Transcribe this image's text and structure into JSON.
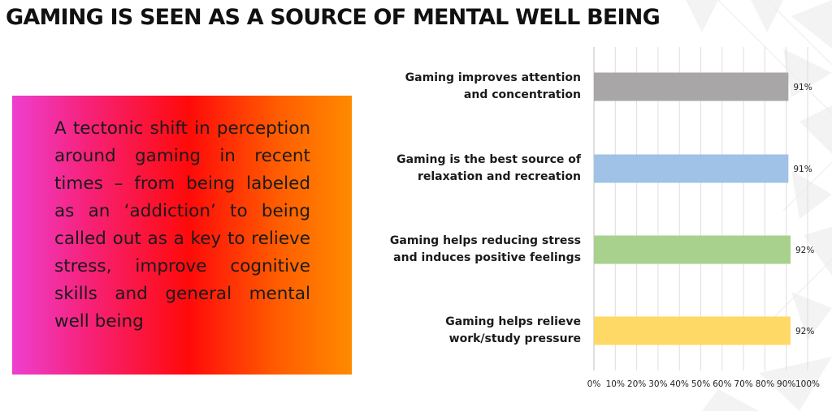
{
  "page": {
    "title": "GAMING IS SEEN AS A SOURCE OF MENTAL WELL BEING",
    "body_text": "A tectonic shift in perception around gaming in recent times – from being labeled as an ‘addiction’ to being called out as a key to relieve stress, improve cognitive skills and general mental well being"
  },
  "colors": {
    "gradient": [
      "#ee3fd0",
      "#ff0a0a",
      "#ff8a00"
    ],
    "bars": [
      "#a8a6a6",
      "#9fc2e6",
      "#a9d18e",
      "#ffd966"
    ]
  },
  "chart_data": {
    "type": "bar",
    "orientation": "horizontal",
    "categories": [
      "Gaming improves attention and concentration",
      "Gaming is the best source of relaxation and recreation",
      "Gaming helps reducing stress and induces positive feelings",
      "Gaming helps relieve work/study pressure"
    ],
    "category_lines": [
      [
        "Gaming improves attention",
        "and concentration"
      ],
      [
        "Gaming is the best source of",
        "relaxation and recreation"
      ],
      [
        "Gaming helps reducing stress",
        "and induces positive feelings"
      ],
      [
        "Gaming helps relieve",
        "work/study pressure"
      ]
    ],
    "values": [
      91,
      91,
      92,
      92
    ],
    "data_labels": [
      "91%",
      "91%",
      "92%",
      "92%"
    ],
    "xlim": [
      0,
      100
    ],
    "xticks": [
      0,
      10,
      20,
      30,
      40,
      50,
      60,
      70,
      80,
      90,
      100
    ],
    "xtick_labels": [
      "0%",
      "10%",
      "20%",
      "30%",
      "40%",
      "50%",
      "60%",
      "70%",
      "80%",
      "90%",
      "100%"
    ],
    "grid": "vertical",
    "legend": "none"
  }
}
